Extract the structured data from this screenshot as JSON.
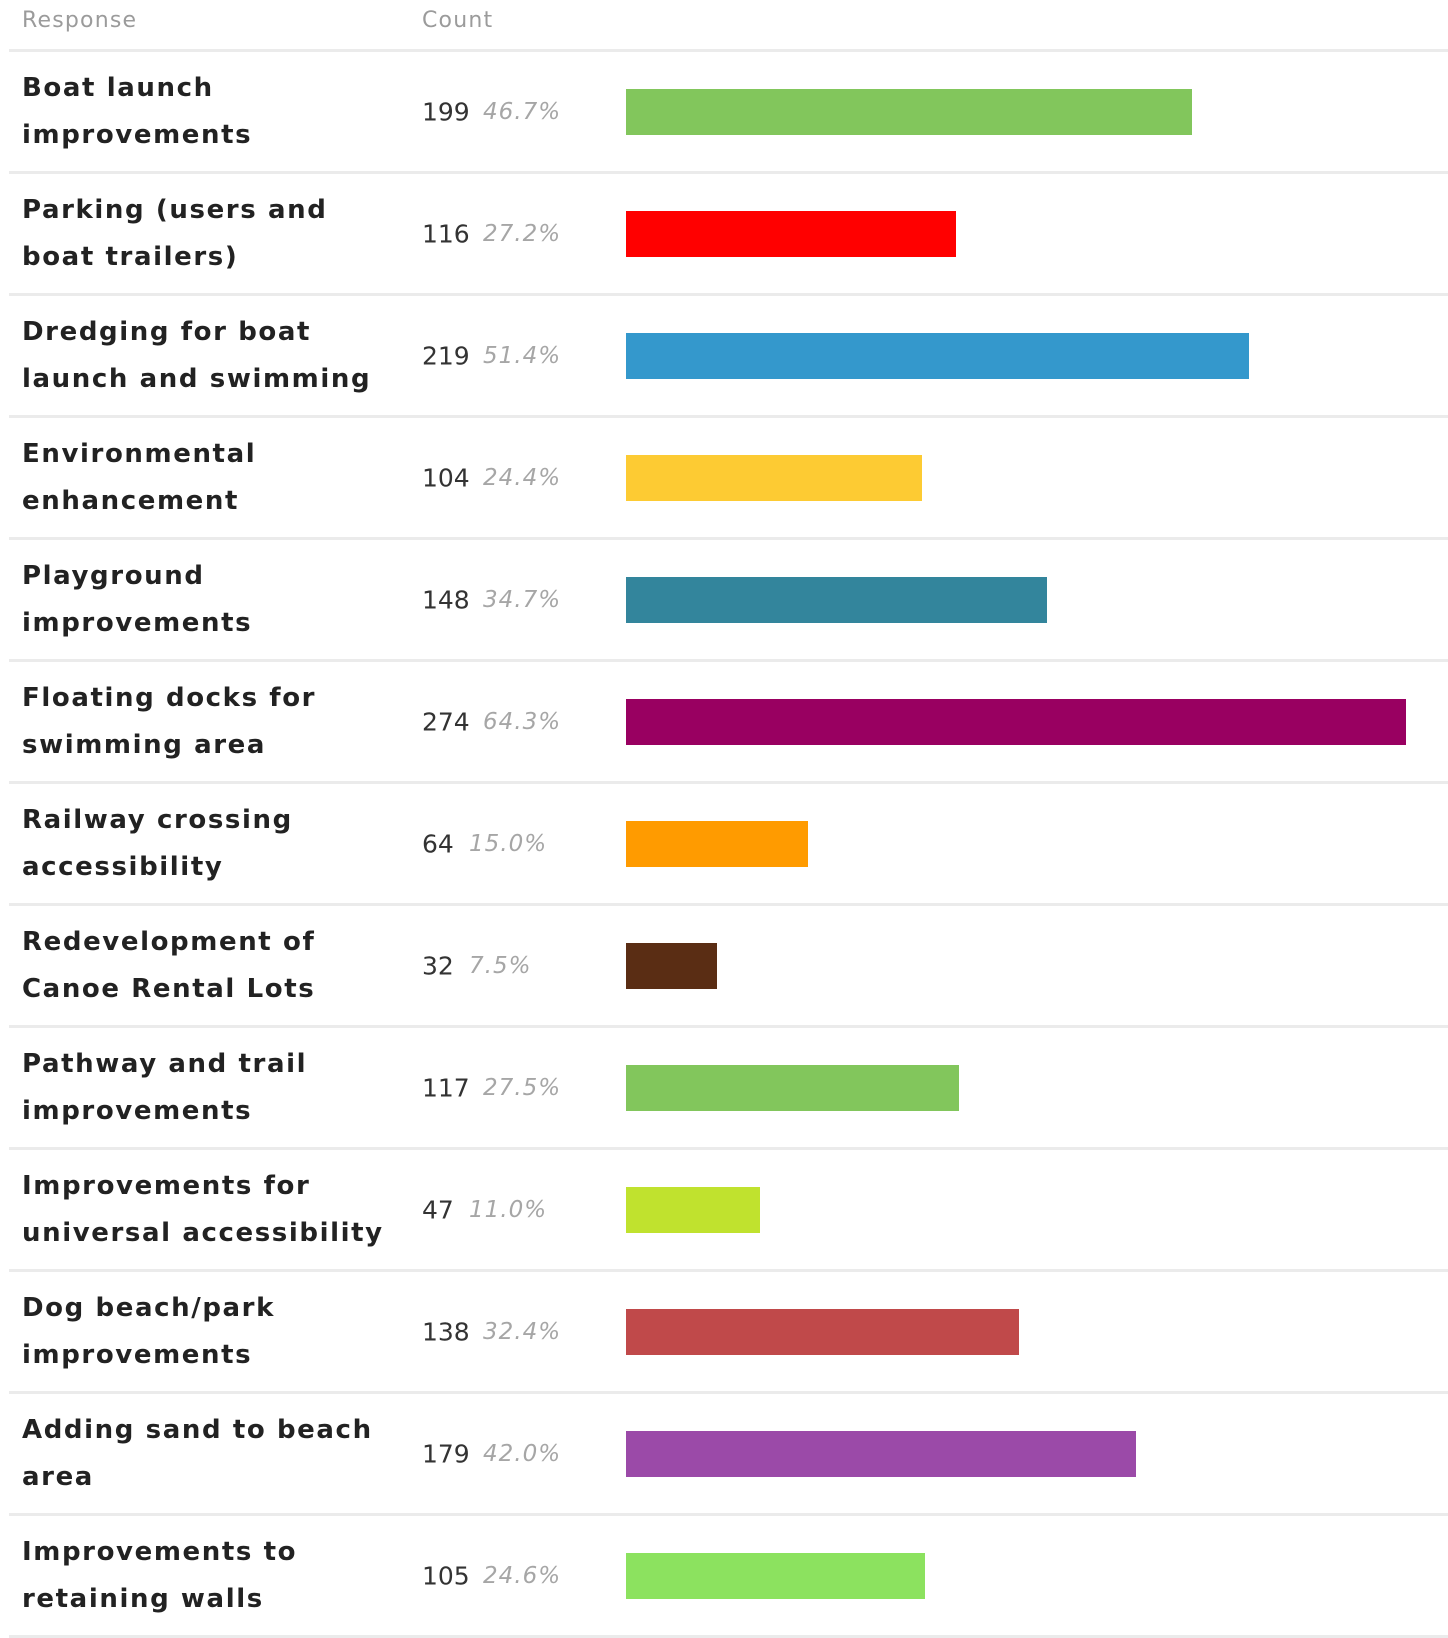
{
  "header": {
    "response_label": "Response",
    "count_label": "Count"
  },
  "chart_data": {
    "type": "bar",
    "orientation": "horizontal",
    "xlim": [
      0,
      274
    ],
    "categories": [
      "Boat launch improvements",
      "Parking (users and boat trailers)",
      "Dredging for boat launch and swimming",
      "Environmental enhancement",
      "Playground improvements",
      "Floating docks for swimming area",
      "Railway crossing accessibility",
      "Redevelopment of Canoe Rental Lots",
      "Pathway and trail improvements",
      "Improvements for universal accessibility",
      "Dog beach/park improvements",
      "Adding sand to beach area",
      "Improvements to retaining walls"
    ],
    "values": [
      199,
      116,
      219,
      104,
      148,
      274,
      64,
      32,
      117,
      47,
      138,
      179,
      105
    ],
    "percent_labels": [
      "46.7%",
      "27.2%",
      "51.4%",
      "24.4%",
      "34.7%",
      "64.3%",
      "15.0%",
      "7.5%",
      "27.5%",
      "11.0%",
      "32.4%",
      "42.0%",
      "24.6%"
    ],
    "colors": [
      "#82c65c",
      "#ff0000",
      "#3498cc",
      "#fdcb33",
      "#33859c",
      "#990061",
      "#ff9b00",
      "#5a2d14",
      "#82c65c",
      "#c0e22e",
      "#c0494a",
      "#9b4aa8",
      "#8ce25f"
    ]
  }
}
